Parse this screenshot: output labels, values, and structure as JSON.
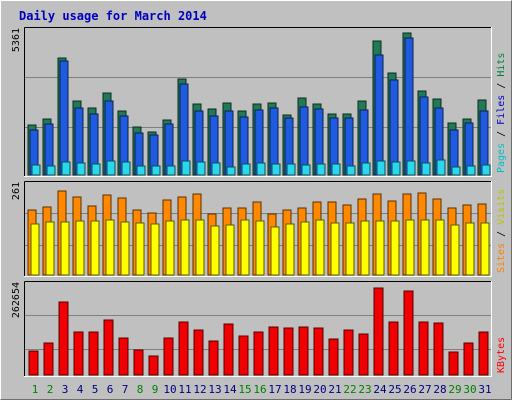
{
  "chart_data": {
    "type": "bar",
    "title": "Daily usage for March 2014",
    "days": [
      "1",
      "2",
      "3",
      "4",
      "5",
      "6",
      "7",
      "8",
      "9",
      "10",
      "11",
      "12",
      "13",
      "14",
      "15",
      "16",
      "17",
      "18",
      "19",
      "20",
      "21",
      "22",
      "23",
      "24",
      "25",
      "26",
      "27",
      "28",
      "29",
      "30",
      "31"
    ],
    "weekend_days": [
      "1",
      "2",
      "8",
      "9",
      "15",
      "16",
      "22",
      "23",
      "29",
      "30"
    ],
    "panels": [
      {
        "id": "pages-files-hits",
        "max_label": "5361",
        "ymax": 5361,
        "legend": [
          "Pages",
          "/",
          "Files",
          "/",
          "Hits"
        ],
        "series": [
          {
            "name": "Hits",
            "color": "#217a55",
            "values": [
              1840,
              2060,
              4340,
              2740,
              2470,
              3030,
              2360,
              1780,
              1600,
              2040,
              3540,
              2630,
              2450,
              2670,
              2350,
              2630,
              2660,
              2230,
              2850,
              2610,
              2260,
              2270,
              2720,
              4950,
              3770,
              5260,
              3090,
              2820,
              1930,
              2070,
              2760
            ]
          },
          {
            "name": "Files",
            "color": "#1f5be0",
            "values": [
              1680,
              1900,
              4220,
              2470,
              2260,
              2720,
              2180,
              1560,
              1470,
              1870,
              3380,
              2370,
              2180,
              2370,
              2150,
              2420,
              2470,
              2100,
              2520,
              2450,
              2110,
              2090,
              2400,
              4430,
              3530,
              5080,
              2900,
              2480,
              1680,
              1940,
              2370
            ]
          },
          {
            "name": "Pages",
            "color": "#2ad8ee",
            "values": [
              360,
              350,
              480,
              450,
              420,
              530,
              490,
              340,
              350,
              330,
              500,
              480,
              440,
              310,
              420,
              430,
              420,
              410,
              380,
              390,
              400,
              320,
              440,
              530,
              490,
              500,
              460,
              570,
              310,
              350,
              360
            ]
          }
        ]
      },
      {
        "id": "sites-visits",
        "max_label": "261",
        "ymax": 261,
        "legend": [
          "Sites",
          "/",
          "Visits"
        ],
        "series": [
          {
            "name": "Visits",
            "color": "#ff8800",
            "values": [
              186,
              196,
              240,
              225,
              198,
              229,
              222,
              186,
              178,
              216,
              224,
              233,
              174,
              193,
              193,
              210,
              174,
              186,
              192,
              208,
              210,
              202,
              219,
              233,
              213,
              232,
              235,
              219,
              193,
              201,
              203
            ]
          },
          {
            "name": "Sites",
            "color": "#ffff00",
            "values": [
              146,
              151,
              153,
              154,
              156,
              158,
              151,
              150,
              145,
              154,
              157,
              158,
              140,
              143,
              158,
              154,
              138,
              145,
              152,
              159,
              150,
              150,
              156,
              155,
              156,
              157,
              159,
              157,
              144,
              148,
              149
            ]
          }
        ]
      },
      {
        "id": "kbytes",
        "max_label": "262654",
        "ymax": 262654,
        "legend": [
          "KBytes"
        ],
        "series": [
          {
            "name": "KBytes",
            "color": "#f00000",
            "values": [
              70000,
              92000,
              210000,
              123000,
              123000,
              159000,
              107000,
              71000,
              55000,
              108000,
              153000,
              131000,
              97000,
              147000,
              113000,
              124000,
              139000,
              136000,
              138000,
              135000,
              104000,
              129000,
              117000,
              250000,
              153000,
              242000,
              154000,
              149000,
              67000,
              93000,
              124000
            ]
          }
        ]
      }
    ]
  }
}
